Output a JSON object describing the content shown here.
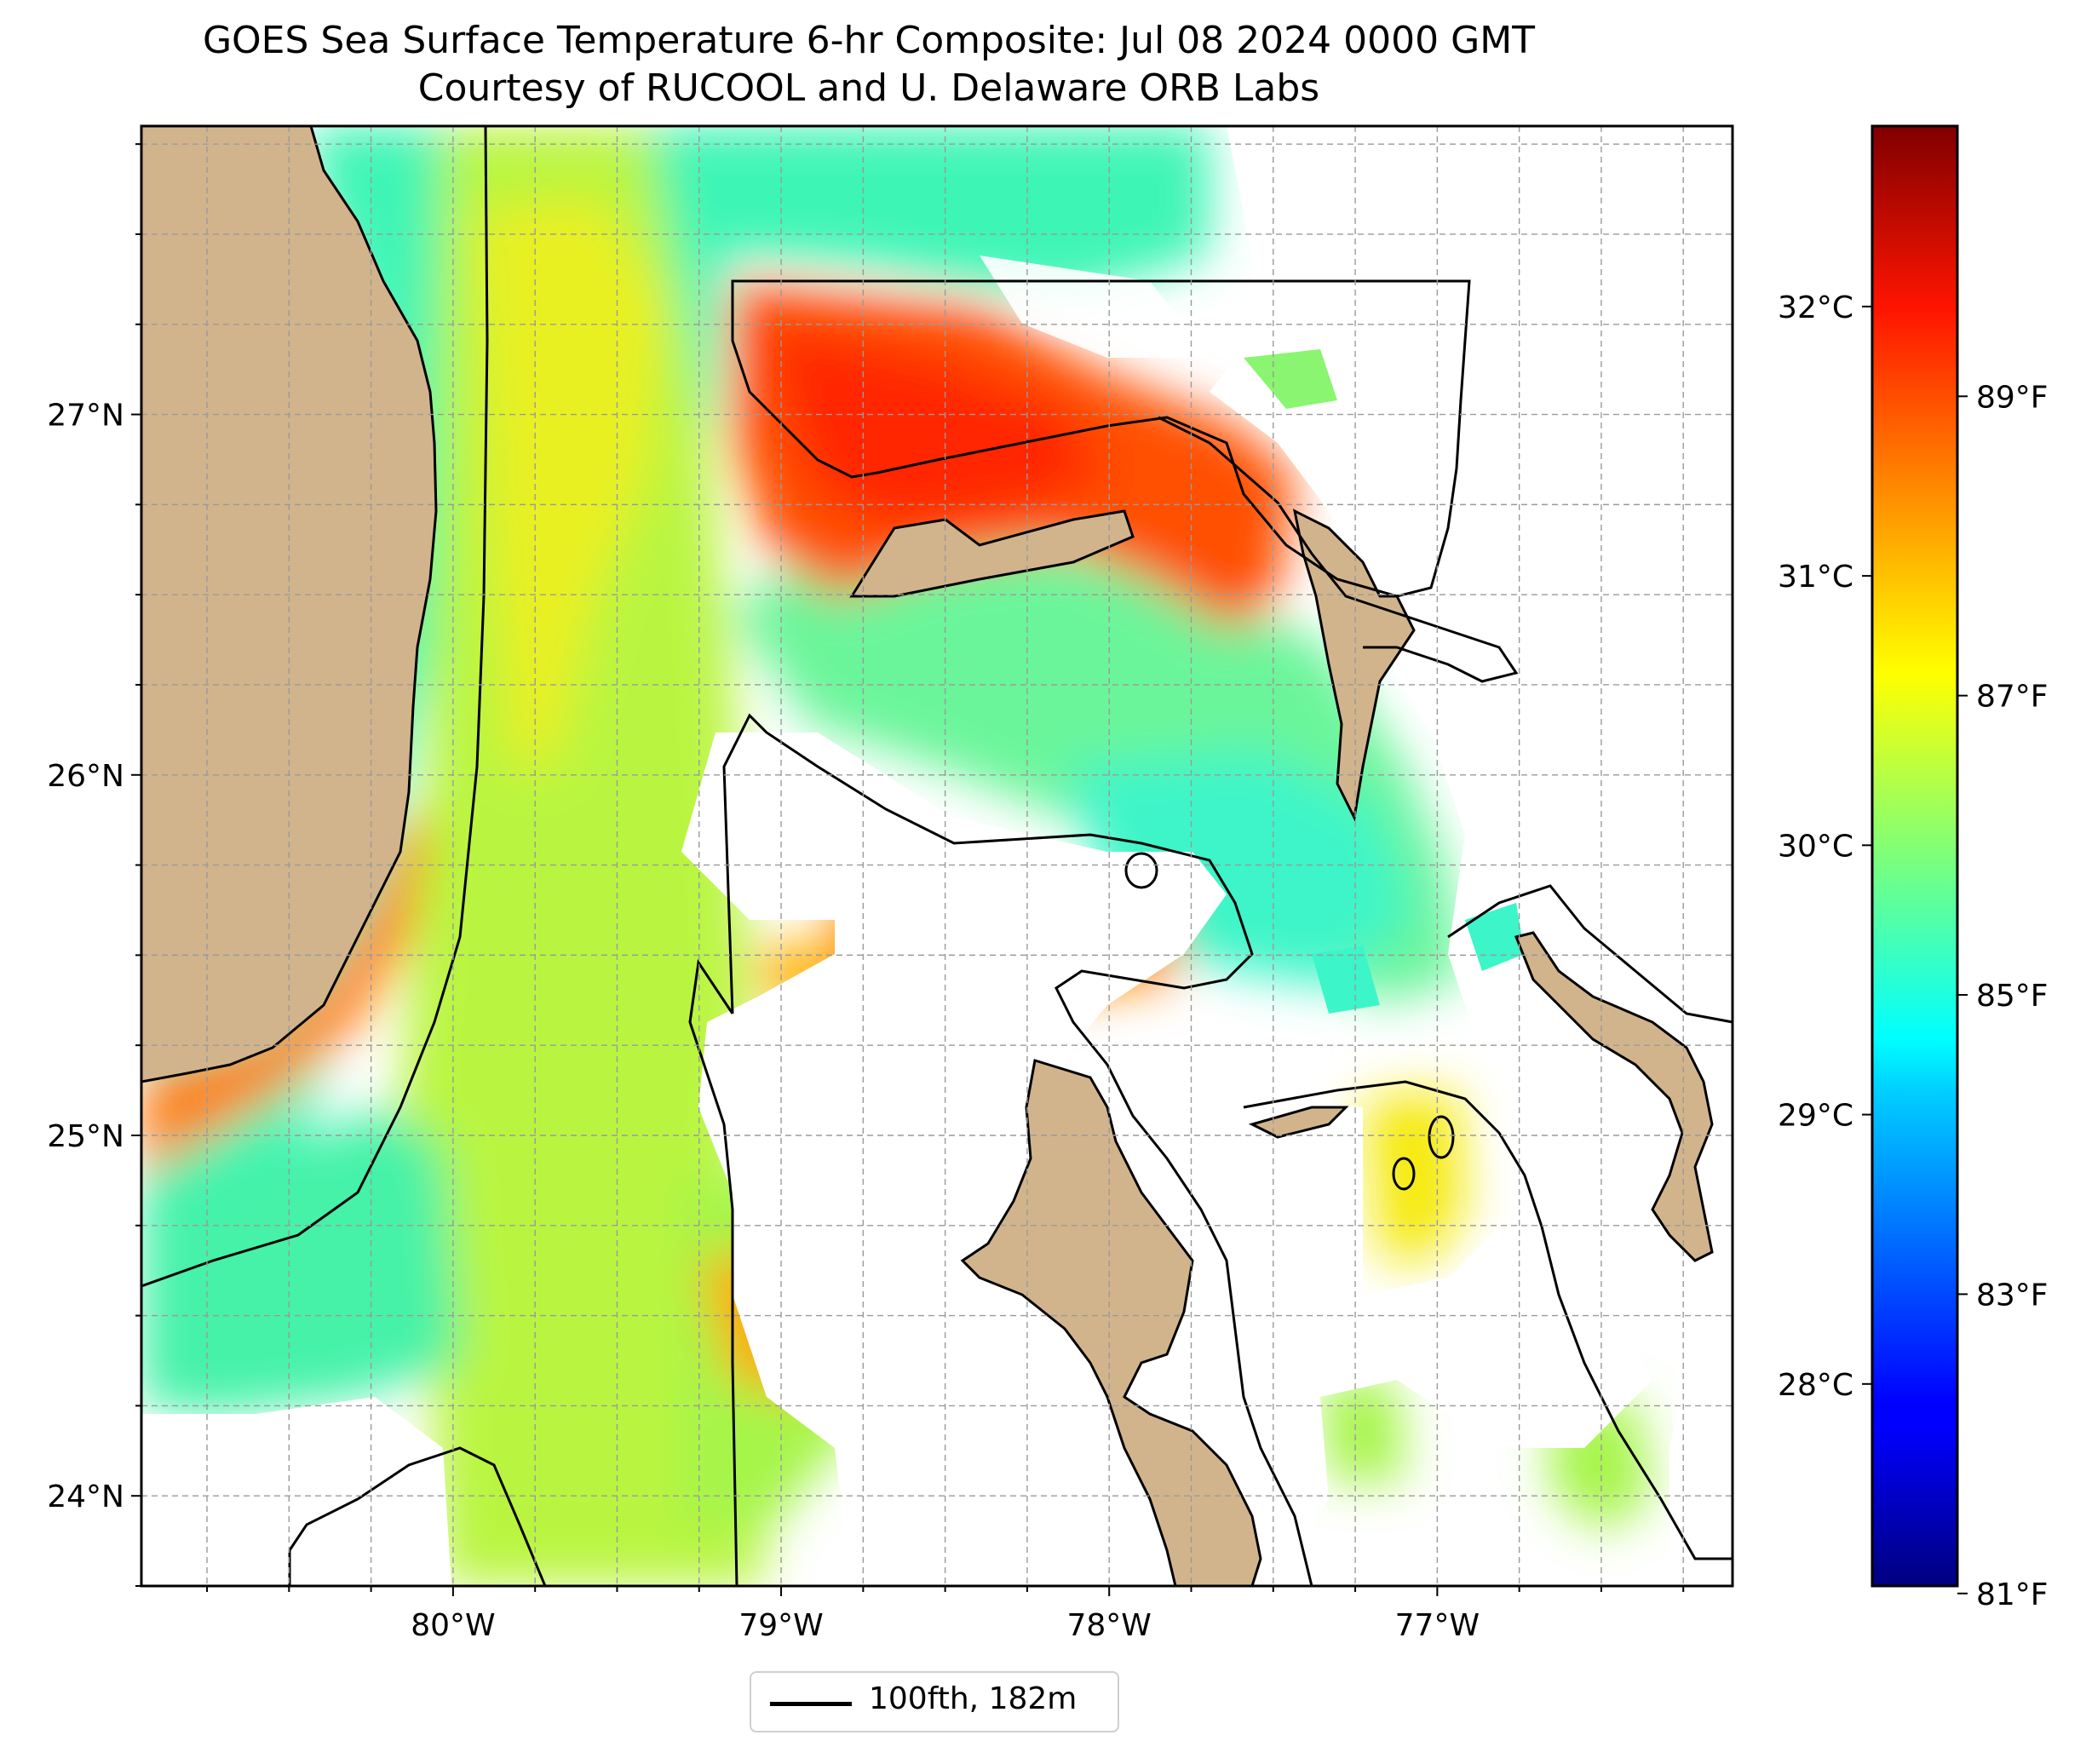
{
  "title": "GOES Sea Surface Temperature 6-hr Composite: Jul 08 2024 0000 GMT",
  "subtitle": "Courtesy of RUCOOL and U. Delaware ORB Labs",
  "map": {
    "lon_range": [
      -80.95,
      -76.1
    ],
    "lat_range": [
      23.75,
      27.8
    ],
    "lon_ticks": [
      {
        "value": -80,
        "label": "80°W"
      },
      {
        "value": -79,
        "label": "79°W"
      },
      {
        "value": -78,
        "label": "78°W"
      },
      {
        "value": -77,
        "label": "77°W"
      }
    ],
    "lat_ticks": [
      {
        "value": 24,
        "label": "24°N"
      },
      {
        "value": 25,
        "label": "25°N"
      },
      {
        "value": 26,
        "label": "26°N"
      },
      {
        "value": 27,
        "label": "27°N"
      }
    ],
    "gridlines": true,
    "land_color": "#d2b48c",
    "no_data_color": "#ffffff",
    "contour_color": "#000000"
  },
  "colorbar": {
    "colormap": "jet",
    "celsius_ticks": [
      {
        "value": 28,
        "label": "28°C"
      },
      {
        "value": 29,
        "label": "29°C"
      },
      {
        "value": 30,
        "label": "30°C"
      },
      {
        "value": 31,
        "label": "31°C"
      },
      {
        "value": 32,
        "label": "32°C"
      }
    ],
    "fahrenheit_ticks": [
      {
        "value": 81,
        "label": "81°F"
      },
      {
        "value": 83,
        "label": "83°F"
      },
      {
        "value": 85,
        "label": "85°F"
      },
      {
        "value": 87,
        "label": "87°F"
      },
      {
        "value": 89,
        "label": "89°F"
      }
    ],
    "range_c": [
      27.25,
      32.67
    ]
  },
  "legend": {
    "label": "100fth, 182m"
  }
}
